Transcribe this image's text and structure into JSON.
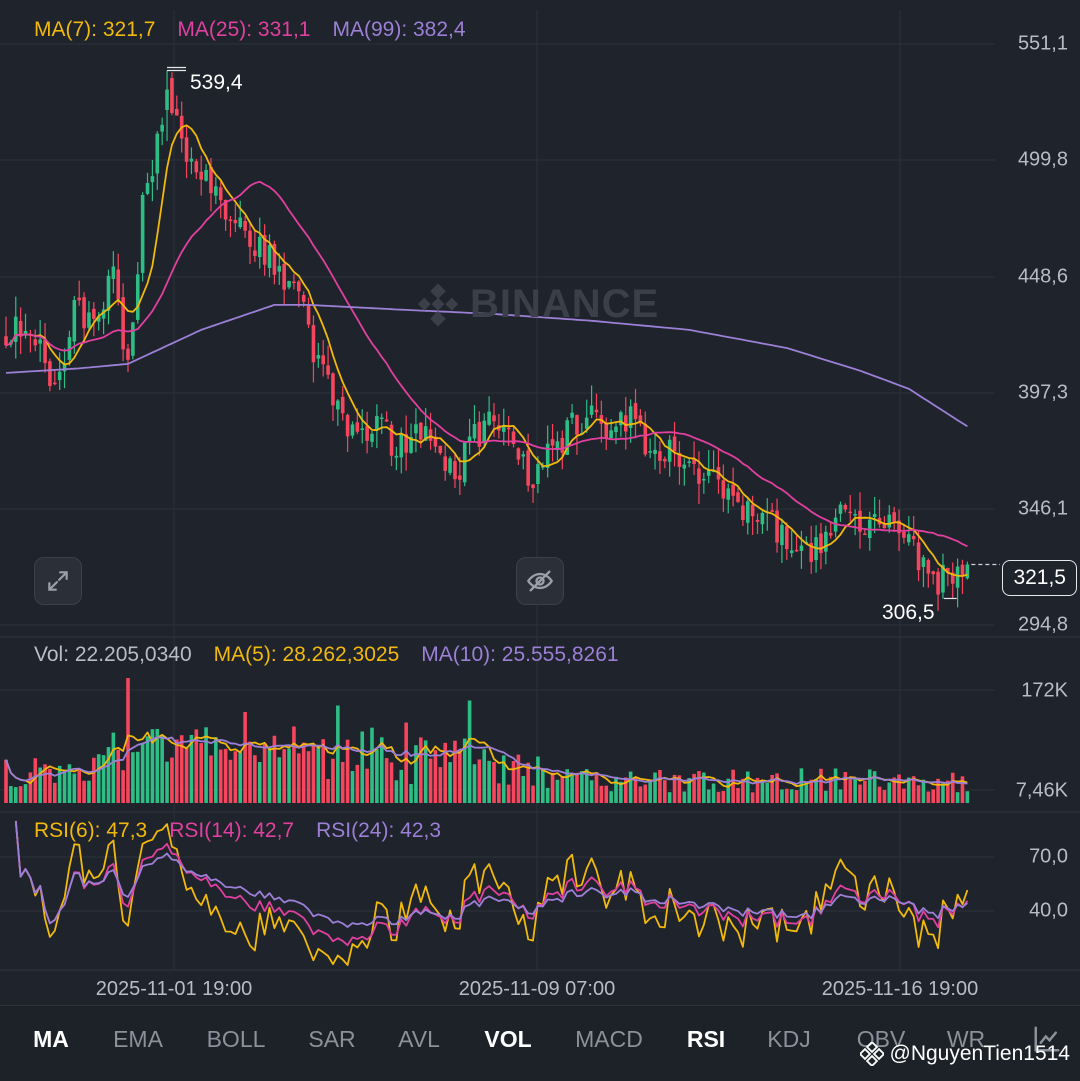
{
  "colors": {
    "up": "#2ebd85",
    "down": "#f6465d",
    "ma_short": "#f0b90b",
    "ma_mid": "#e040a0",
    "ma_long": "#9c7fd6",
    "grid": "#2c3039"
  },
  "legend": {
    "price": [
      {
        "label": "MA(7): 321,7",
        "color": "#f0b90b"
      },
      {
        "label": "MA(25): 331,1",
        "color": "#e040a0"
      },
      {
        "label": "MA(99): 382,4",
        "color": "#9c7fd6"
      }
    ],
    "volume": [
      {
        "label": "Vol: 22.205,0340",
        "color": "#b7bcc6"
      },
      {
        "label": "MA(5): 28.262,3025",
        "color": "#f0b90b"
      },
      {
        "label": "MA(10): 25.555,8261",
        "color": "#9c7fd6"
      }
    ],
    "rsi": [
      {
        "label": "RSI(6): 47,3",
        "color": "#f0b90b"
      },
      {
        "label": "RSI(14): 42,7",
        "color": "#e040a0"
      },
      {
        "label": "RSI(24): 42,3",
        "color": "#9c7fd6"
      }
    ]
  },
  "price_axis_labels": [
    "551,1",
    "499,8",
    "448,6",
    "397,3",
    "346,1",
    "294,8"
  ],
  "volume_axis_labels": [
    "172K",
    "7,46K"
  ],
  "rsi_axis_labels": [
    "70,0",
    "40,0"
  ],
  "time_labels": [
    "2025-11-01 19:00",
    "2025-11-09 07:00",
    "2025-11-16 19:00"
  ],
  "current_price": "321,5",
  "high_annotation": "539,4",
  "low_annotation": "306,5",
  "watermark": "BINANCE",
  "toolbar": [
    "MA",
    "EMA",
    "BOLL",
    "SAR",
    "AVL",
    "VOL",
    "MACD",
    "RSI",
    "KDJ",
    "OBV",
    "WR"
  ],
  "toolbar_active": [
    "MA",
    "VOL",
    "RSI"
  ],
  "user_tag": "@NguyenTien1514",
  "icons": {
    "expand": "expand-icon",
    "hide": "eye-off-icon",
    "settings": "chart-settings-icon",
    "user": "binance-logo-icon"
  },
  "chart_data": {
    "type": "candlestick",
    "title": "",
    "price_axis": {
      "min": 294.8,
      "max": 551.1,
      "ticks": [
        551.1,
        499.8,
        448.6,
        397.3,
        346.1,
        294.8
      ]
    },
    "volume_axis": {
      "ticks": [
        "172K",
        "7,46K"
      ]
    },
    "rsi_axis": {
      "ticks": [
        70.0,
        40.0
      ]
    },
    "x_ticks": [
      "2025-11-01 19:00",
      "2025-11-09 07:00",
      "2025-11-16 19:00"
    ],
    "close_anchors": [
      [
        0,
        425
      ],
      [
        6,
        422
      ],
      [
        10,
        400
      ],
      [
        14,
        432
      ],
      [
        18,
        430
      ],
      [
        22,
        450
      ],
      [
        25,
        408
      ],
      [
        28,
        480
      ],
      [
        31,
        505
      ],
      [
        33,
        530
      ],
      [
        36,
        505
      ],
      [
        40,
        498
      ],
      [
        45,
        480
      ],
      [
        50,
        462
      ],
      [
        55,
        455
      ],
      [
        60,
        440
      ],
      [
        64,
        410
      ],
      [
        68,
        388
      ],
      [
        72,
        380
      ],
      [
        76,
        385
      ],
      [
        80,
        372
      ],
      [
        84,
        383
      ],
      [
        88,
        378
      ],
      [
        92,
        360
      ],
      [
        96,
        378
      ],
      [
        100,
        385
      ],
      [
        105,
        368
      ],
      [
        108,
        360
      ],
      [
        112,
        372
      ],
      [
        116,
        383
      ],
      [
        120,
        388
      ],
      [
        124,
        378
      ],
      [
        128,
        386
      ],
      [
        132,
        370
      ],
      [
        136,
        375
      ],
      [
        140,
        368
      ],
      [
        144,
        360
      ],
      [
        148,
        352
      ],
      [
        152,
        345
      ],
      [
        156,
        340
      ],
      [
        160,
        332
      ],
      [
        164,
        325
      ],
      [
        168,
        336
      ],
      [
        172,
        345
      ],
      [
        176,
        340
      ],
      [
        180,
        342
      ],
      [
        184,
        332
      ],
      [
        188,
        322
      ],
      [
        191,
        315
      ],
      [
        194,
        313
      ],
      [
        197,
        321.5
      ]
    ],
    "ma_series": [
      {
        "name": "MA(7)",
        "period": 7,
        "color": "#f0b90b",
        "last": 321.7
      },
      {
        "name": "MA(25)",
        "period": 25,
        "color": "#e040a0",
        "last": 331.1
      },
      {
        "name": "MA(99)",
        "color": "#9c7fd6",
        "last": 382.4,
        "anchors": [
          [
            0,
            406
          ],
          [
            15,
            408
          ],
          [
            25,
            410
          ],
          [
            40,
            425
          ],
          [
            55,
            436
          ],
          [
            62,
            436
          ],
          [
            80,
            434
          ],
          [
            100,
            432
          ],
          [
            120,
            429
          ],
          [
            140,
            425
          ],
          [
            160,
            417
          ],
          [
            175,
            407
          ],
          [
            185,
            399
          ],
          [
            197,
            382.4
          ]
        ]
      }
    ],
    "last_values": {
      "close": 321.5,
      "high": 539.4,
      "low": 306.5
    },
    "rsi_last": {
      "RSI(6)": 47.3,
      "RSI(14)": 42.7,
      "RSI(24)": 42.3
    },
    "volume_last": {
      "Vol": "22.205,0340",
      "MA(5)": "28.262,3025",
      "MA(10)": "25.555,8261"
    }
  }
}
